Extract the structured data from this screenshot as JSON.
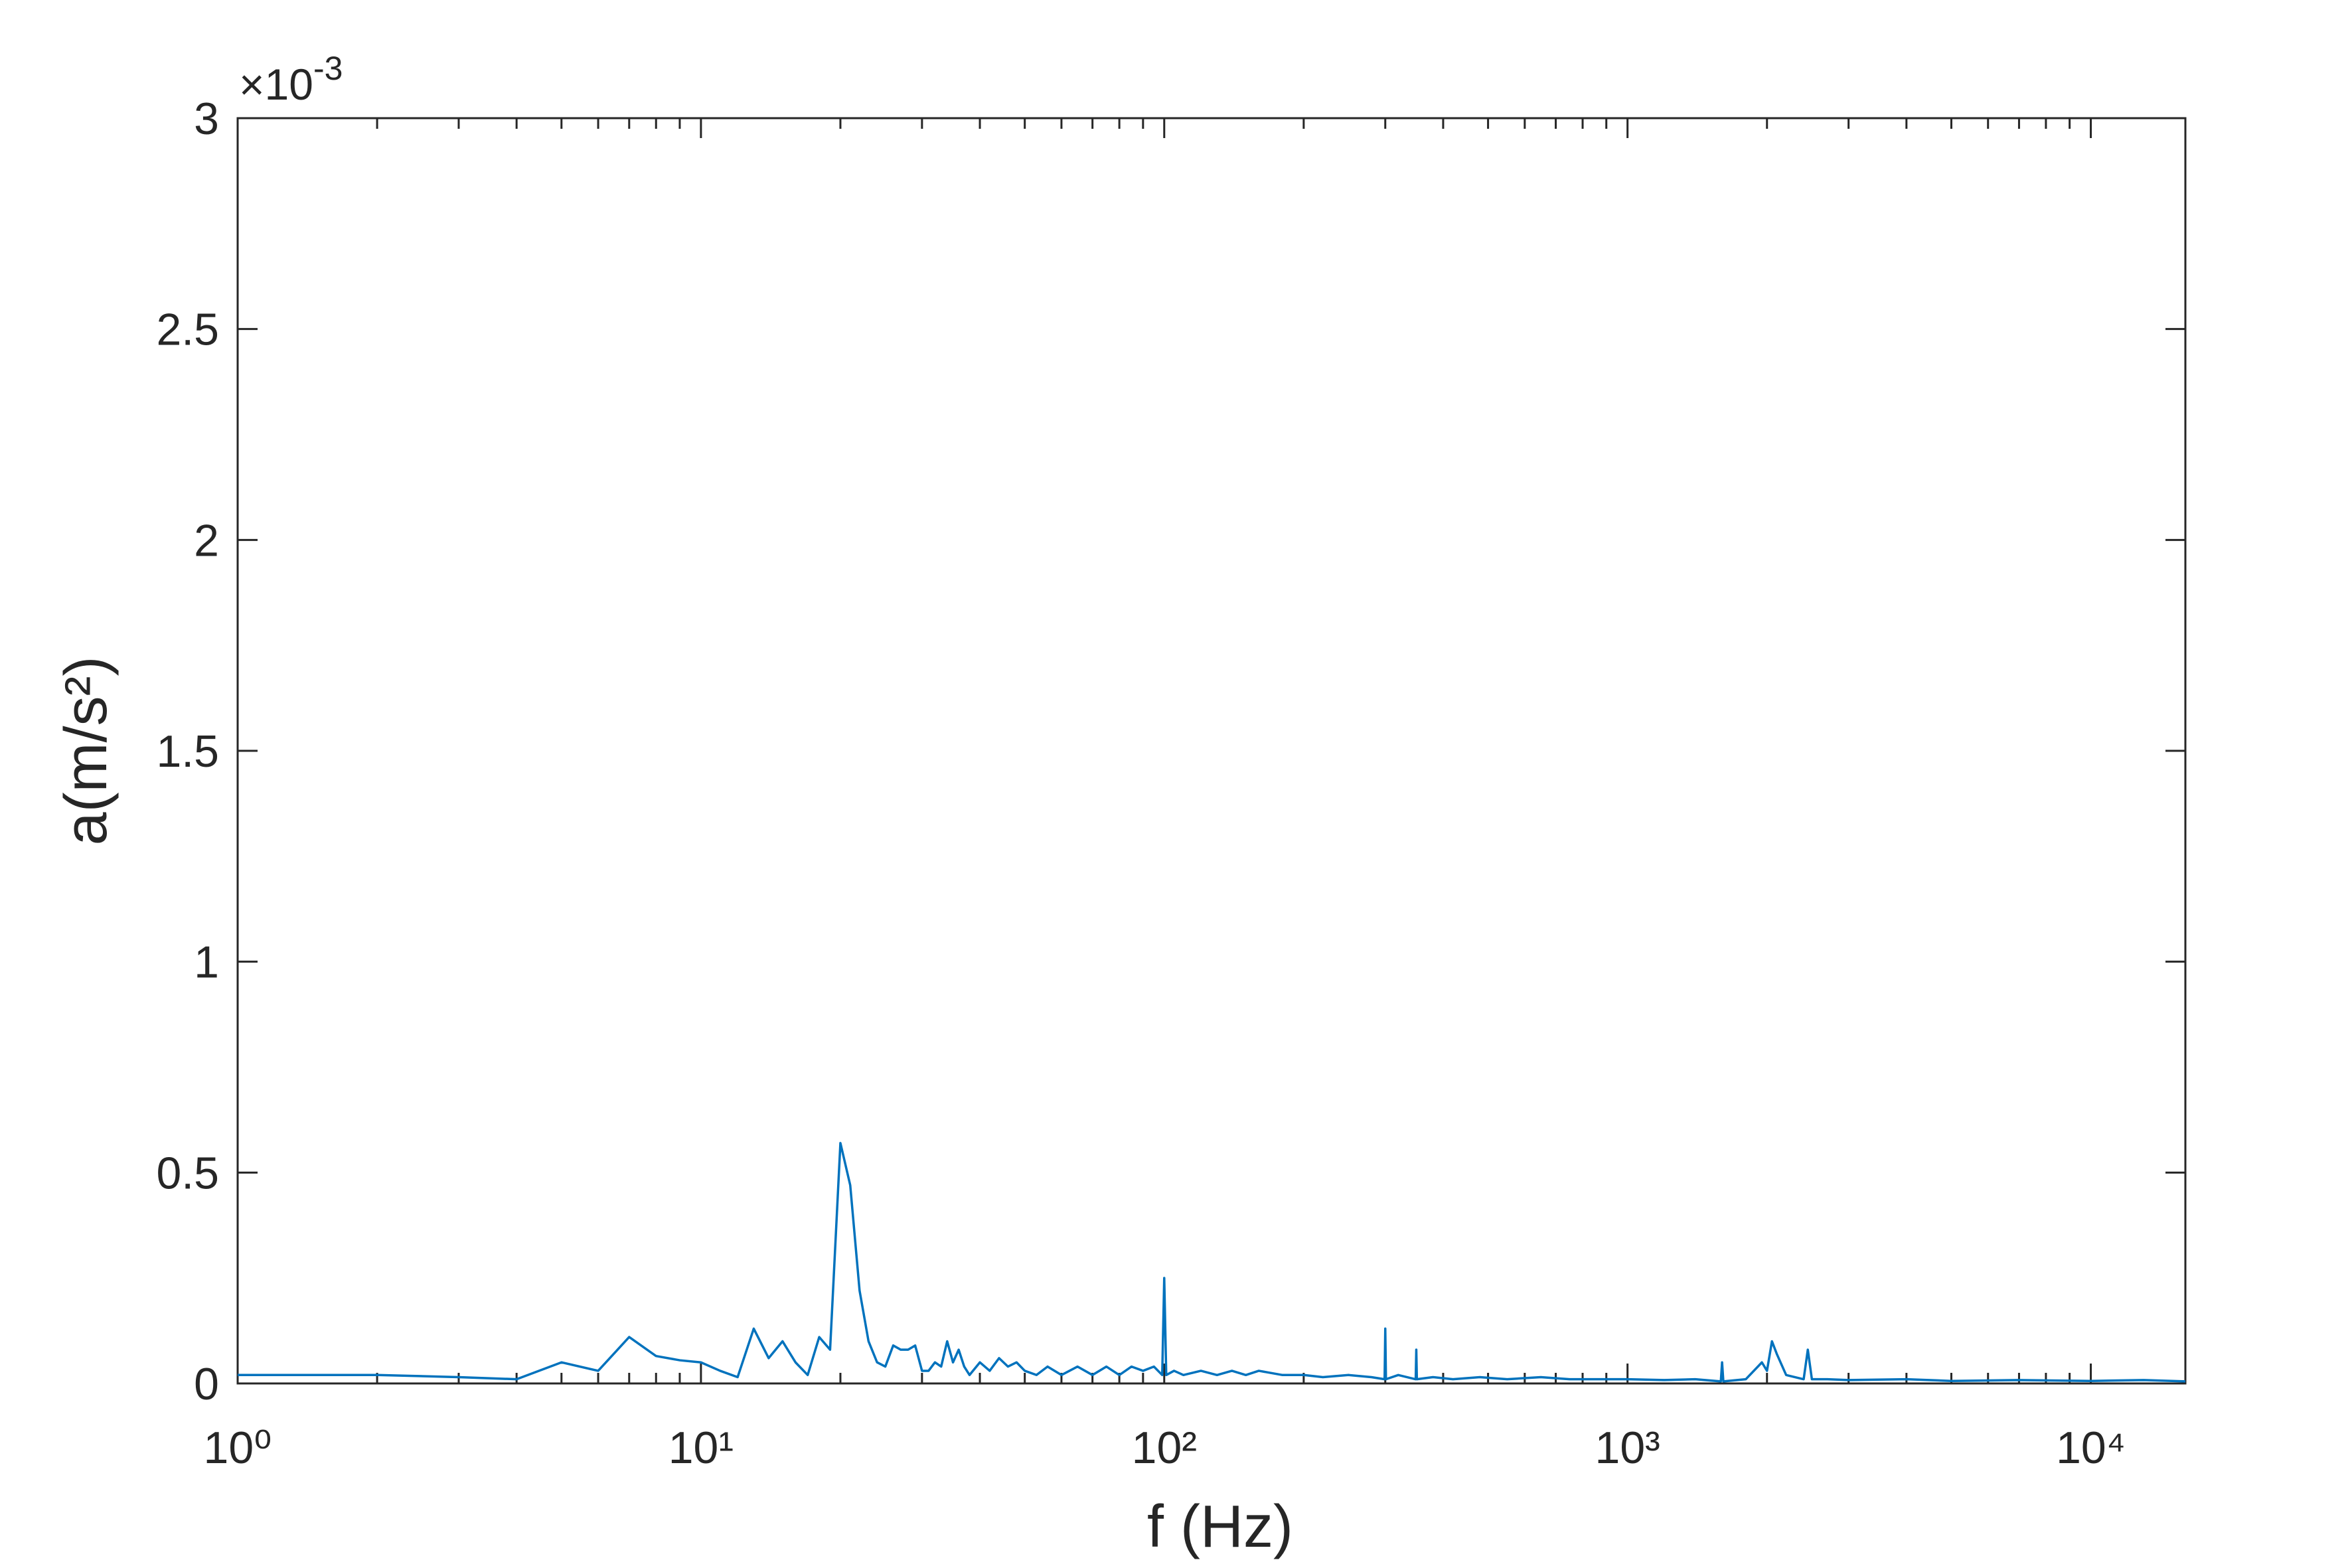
{
  "chart_data": {
    "type": "line",
    "x_label": "f (Hz)",
    "y_label": "a(m/s²)",
    "y_multiplier": "×10",
    "y_multiplier_power": "-3",
    "x_scale": "log",
    "xlim": [
      1,
      16000
    ],
    "xticks": [
      {
        "value": 1,
        "label": "10⁰"
      },
      {
        "value": 10,
        "label": "10¹"
      },
      {
        "value": 100,
        "label": "10²"
      },
      {
        "value": 1000,
        "label": "10³"
      },
      {
        "value": 10000,
        "label": "10⁴"
      }
    ],
    "xminorticks": [
      2,
      3,
      4,
      5,
      6,
      7,
      8,
      9,
      20,
      30,
      40,
      50,
      60,
      70,
      80,
      90,
      200,
      300,
      400,
      500,
      600,
      700,
      800,
      900,
      2000,
      3000,
      4000,
      5000,
      6000,
      7000,
      8000,
      9000
    ],
    "ylim": [
      0,
      0.003
    ],
    "yticks": [
      {
        "value": 0,
        "label": "0"
      },
      {
        "value": 0.0005,
        "label": "0.5"
      },
      {
        "value": 0.001,
        "label": "1"
      },
      {
        "value": 0.0015,
        "label": "1.5"
      },
      {
        "value": 0.002,
        "label": "2"
      },
      {
        "value": 0.0025,
        "label": "2.5"
      },
      {
        "value": 0.003,
        "label": "3"
      }
    ],
    "grid": false,
    "x": [
      1,
      2,
      3,
      4,
      5,
      6,
      7,
      8,
      9,
      10,
      11,
      12,
      13,
      14,
      15,
      16,
      17,
      18,
      19,
      20,
      21,
      22,
      23,
      24,
      25,
      26,
      27,
      28,
      29,
      30,
      31,
      32,
      33,
      34,
      35,
      36,
      37,
      38,
      40,
      42,
      44,
      46,
      48,
      50,
      53,
      56,
      60,
      65,
      70,
      75,
      80,
      85,
      90,
      95,
      99,
      100,
      101,
      105,
      110,
      120,
      130,
      140,
      150,
      160,
      180,
      200,
      220,
      250,
      280,
      299,
      300,
      301,
      320,
      349,
      350,
      351,
      380,
      420,
      480,
      550,
      650,
      750,
      900,
      1000,
      1200,
      1400,
      1590,
      1600,
      1610,
      1800,
      1950,
      2000,
      2050,
      2100,
      2200,
      2400,
      2450,
      2500,
      2700,
      3000,
      4000,
      5000,
      7000,
      10000,
      13000,
      16000
    ],
    "series": [
      {
        "color": "#0072bd",
        "values": [
          2e-05,
          2e-05,
          1.5e-05,
          1e-05,
          5e-05,
          3e-05,
          0.00011,
          6.5e-05,
          5.5e-05,
          5e-05,
          3e-05,
          1.5e-05,
          0.00013,
          6e-05,
          0.0001,
          5e-05,
          2e-05,
          0.00011,
          8e-05,
          0.00057,
          0.00047,
          0.00022,
          0.0001,
          5e-05,
          4e-05,
          9e-05,
          8e-05,
          8e-05,
          9e-05,
          3e-05,
          3e-05,
          5e-05,
          4e-05,
          0.0001,
          5e-05,
          8e-05,
          4e-05,
          2e-05,
          5e-05,
          3e-05,
          6e-05,
          4e-05,
          5e-05,
          3e-05,
          2e-05,
          4e-05,
          2e-05,
          4e-05,
          2e-05,
          4e-05,
          2e-05,
          4e-05,
          3e-05,
          4e-05,
          2e-05,
          0.00025,
          2e-05,
          3e-05,
          2e-05,
          3e-05,
          2e-05,
          3e-05,
          2e-05,
          3e-05,
          2e-05,
          2e-05,
          1.5e-05,
          2e-05,
          1.5e-05,
          1e-05,
          0.00013,
          1e-05,
          2e-05,
          1e-05,
          8e-05,
          1e-05,
          1.5e-05,
          1e-05,
          1.5e-05,
          1e-05,
          1.5e-05,
          1e-05,
          1e-05,
          1e-05,
          8e-06,
          1e-05,
          5e-06,
          5e-05,
          5e-06,
          1e-05,
          5e-05,
          3e-05,
          0.0001,
          7e-05,
          2e-05,
          1e-05,
          8e-05,
          1e-05,
          1e-05,
          8e-06,
          1e-05,
          6e-06,
          8e-06,
          6e-06,
          8e-06,
          5e-06
        ]
      }
    ]
  }
}
